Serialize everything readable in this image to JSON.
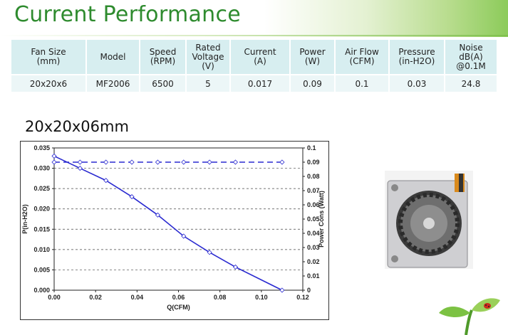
{
  "header": {
    "title": "Current Performance"
  },
  "spec_table": {
    "columns": [
      "Fan Size\n(mm)",
      "Model",
      "Speed\n(RPM)",
      "Rated\nVoltage\n(V)",
      "Current\n(A)",
      "Power\n(W)",
      "Air Flow\n(CFM)",
      "Pressure\n(in-H2O)",
      "Noise\ndB(A)\n@0.1M"
    ],
    "row": [
      "20x20x6",
      "MF2006",
      "6500",
      "5",
      "0.017",
      "0.09",
      "0.1",
      "0.03",
      "24.8"
    ]
  },
  "chart_data": {
    "type": "line",
    "title": "20x20x06mm",
    "xlabel": "Q(CFM)",
    "ylabel_left": "P(in-H2O)",
    "ylabel_right": "Power Cons (Watt)",
    "xlim": [
      0,
      0.12
    ],
    "ylim_left": [
      0,
      0.035
    ],
    "ylim_right": [
      0,
      0.1
    ],
    "x_ticks": [
      "0.00",
      "0.02",
      "0.04",
      "0.06",
      "0.08",
      "0.10",
      "0.12"
    ],
    "y_left_ticks": [
      "0.000",
      "0.005",
      "0.010",
      "0.015",
      "0.020",
      "0.025",
      "0.030",
      "0.035"
    ],
    "y_right_ticks": [
      "0",
      "0.01",
      "0.02",
      "0.03",
      "0.04",
      "0.05",
      "0.06",
      "0.07",
      "0.08",
      "0.09",
      "0.1"
    ],
    "grid": "horizontal dashed",
    "series": [
      {
        "axis": "left",
        "line": "solid",
        "color": "#2a2ad0",
        "x": [
          0.0,
          0.0125,
          0.025,
          0.0375,
          0.05,
          0.0625,
          0.075,
          0.0875,
          0.11
        ],
        "y": [
          0.033,
          0.03,
          0.027,
          0.023,
          0.0185,
          0.0133,
          0.0093,
          0.0057,
          0.0
        ]
      },
      {
        "axis": "right",
        "line": "dashed",
        "color": "#2a2ad0",
        "x": [
          0.0,
          0.0125,
          0.025,
          0.0375,
          0.05,
          0.0625,
          0.075,
          0.0875,
          0.11
        ],
        "y": [
          0.09,
          0.09,
          0.09,
          0.09,
          0.09,
          0.09,
          0.09,
          0.09,
          0.09
        ]
      }
    ]
  },
  "colors": {
    "title_green": "#2e8b2e",
    "table_header": "#d7eef0",
    "table_row": "#ecf6f7",
    "series": "#2a2ad0"
  },
  "images": {
    "product": "blower-fan-photo",
    "decoration": "leaf-sprout-with-ladybug"
  }
}
